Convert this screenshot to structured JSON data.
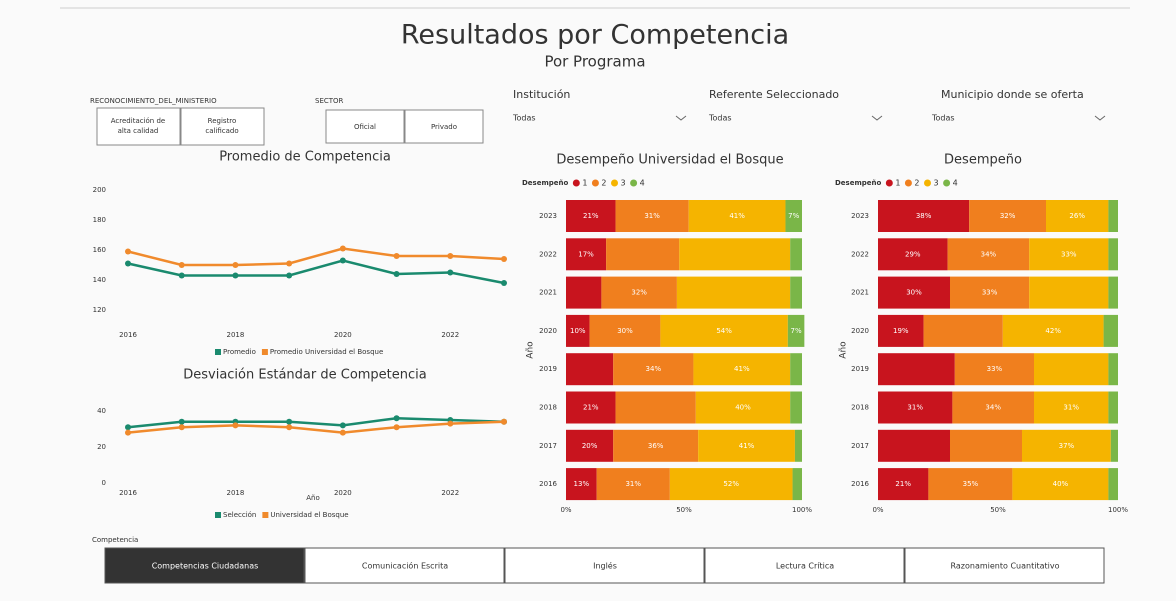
{
  "header": {
    "title": "Resultados por Competencia",
    "subtitle": "Por Programa"
  },
  "filters": {
    "reconocimiento": {
      "label": "RECONOCIMIENTO_DEL_MINISTERIO",
      "options": [
        "Acreditación de alta calidad",
        "Registro calificado"
      ]
    },
    "sector": {
      "label": "SECTOR",
      "options": [
        "Oficial",
        "Privado"
      ]
    },
    "dropdowns": [
      {
        "label": "Institución",
        "value": "Todas"
      },
      {
        "label": "Referente Seleccionado",
        "value": "Todas"
      },
      {
        "label": "Municipio donde se oferta",
        "value": "Todas"
      }
    ]
  },
  "competencia": {
    "label": "Competencia",
    "options": [
      "Competencias Ciudadanas",
      "Comunicación Escrita",
      "Inglés",
      "Lectura Crítica",
      "Razonamiento Cuantitativo"
    ],
    "selected": 0
  },
  "chart_data": [
    {
      "type": "line",
      "title": "Promedio de Competencia",
      "x": [
        2016,
        2017,
        2018,
        2019,
        2020,
        2021,
        2022,
        2023
      ],
      "xlim": [
        2016,
        2023
      ],
      "xticks": [
        2016,
        2018,
        2020,
        2022
      ],
      "ylim": [
        120,
        200
      ],
      "yticks": [
        120,
        140,
        160,
        180,
        200
      ],
      "series": [
        {
          "name": "Promedio",
          "color": "#1a8a6e",
          "values": [
            151,
            143,
            143,
            143,
            153,
            144,
            145,
            138
          ]
        },
        {
          "name": "Promedio Universidad el Bosque",
          "color": "#f08a2c",
          "values": [
            159,
            150,
            150,
            151,
            161,
            156,
            156,
            154
          ]
        }
      ]
    },
    {
      "type": "line",
      "title": "Desviación Estándar de Competencia",
      "x_label": "Año",
      "x": [
        2016,
        2017,
        2018,
        2019,
        2020,
        2021,
        2022,
        2023
      ],
      "xlim": [
        2016,
        2023
      ],
      "xticks": [
        2016,
        2018,
        2020,
        2022
      ],
      "ylim": [
        0,
        40
      ],
      "yticks": [
        0,
        20,
        40
      ],
      "series": [
        {
          "name": "Selección",
          "color": "#1a8a6e",
          "values": [
            31,
            34,
            34,
            34,
            32,
            36,
            35,
            34
          ]
        },
        {
          "name": "Universidad el Bosque",
          "color": "#f08a2c",
          "values": [
            28,
            31,
            32,
            31,
            28,
            31,
            33,
            34
          ]
        }
      ]
    },
    {
      "type": "stacked_barh",
      "title": "Desempeño Universidad el Bosque",
      "legend_title": "Desempeño",
      "y_label": "Año",
      "categories": [
        "2023",
        "2022",
        "2021",
        "2020",
        "2019",
        "2018",
        "2017",
        "2016"
      ],
      "xlim": [
        0,
        100
      ],
      "xticks": [
        {
          "value": 0,
          "label": "0%"
        },
        {
          "value": 50,
          "label": "50%"
        },
        {
          "value": 100,
          "label": "100%"
        }
      ],
      "series": [
        {
          "name": "1",
          "color": "#c8141e",
          "values": [
            21,
            17,
            15,
            10,
            20,
            21,
            20,
            13
          ],
          "value_labels": [
            "21%",
            "17%",
            null,
            "10%",
            null,
            "21%",
            "20%",
            "13%"
          ]
        },
        {
          "name": "2",
          "color": "#f07f1e",
          "values": [
            31,
            31,
            32,
            30,
            34,
            34,
            36,
            31
          ],
          "value_labels": [
            "31%",
            null,
            "32%",
            "30%",
            "34%",
            null,
            "36%",
            "31%"
          ]
        },
        {
          "name": "3",
          "color": "#f5b400",
          "values": [
            41,
            47,
            48,
            54,
            41,
            40,
            41,
            52
          ],
          "value_labels": [
            "41%",
            null,
            null,
            "54%",
            "41%",
            "40%",
            "41%",
            "52%"
          ]
        },
        {
          "name": "4",
          "color": "#7ab648",
          "values": [
            7,
            5,
            5,
            7,
            5,
            5,
            3,
            4
          ],
          "value_labels": [
            "7%",
            null,
            null,
            "7%",
            null,
            null,
            null,
            null
          ]
        }
      ]
    },
    {
      "type": "stacked_barh",
      "title": "Desempeño",
      "legend_title": "Desempeño",
      "y_label": "Año",
      "categories": [
        "2023",
        "2022",
        "2021",
        "2020",
        "2019",
        "2018",
        "2017",
        "2016"
      ],
      "xlim": [
        0,
        100
      ],
      "xticks": [
        {
          "value": 0,
          "label": "0%"
        },
        {
          "value": 50,
          "label": "50%"
        },
        {
          "value": 100,
          "label": "100%"
        }
      ],
      "series": [
        {
          "name": "1",
          "color": "#c8141e",
          "values": [
            38,
            29,
            30,
            19,
            32,
            31,
            30,
            21
          ],
          "value_labels": [
            "38%",
            "29%",
            "30%",
            "19%",
            null,
            "31%",
            null,
            "21%"
          ]
        },
        {
          "name": "2",
          "color": "#f07f1e",
          "values": [
            32,
            34,
            33,
            33,
            33,
            34,
            30,
            35
          ],
          "value_labels": [
            "32%",
            "34%",
            "33%",
            null,
            "33%",
            "34%",
            null,
            "35%"
          ]
        },
        {
          "name": "3",
          "color": "#f5b400",
          "values": [
            26,
            33,
            33,
            42,
            31,
            31,
            37,
            40
          ],
          "value_labels": [
            "26%",
            "33%",
            null,
            "42%",
            null,
            "31%",
            "37%",
            "40%"
          ]
        },
        {
          "name": "4",
          "color": "#7ab648",
          "values": [
            4,
            4,
            4,
            6,
            4,
            4,
            3,
            4
          ],
          "value_labels": [
            null,
            null,
            null,
            null,
            null,
            null,
            null,
            null
          ]
        }
      ]
    }
  ]
}
